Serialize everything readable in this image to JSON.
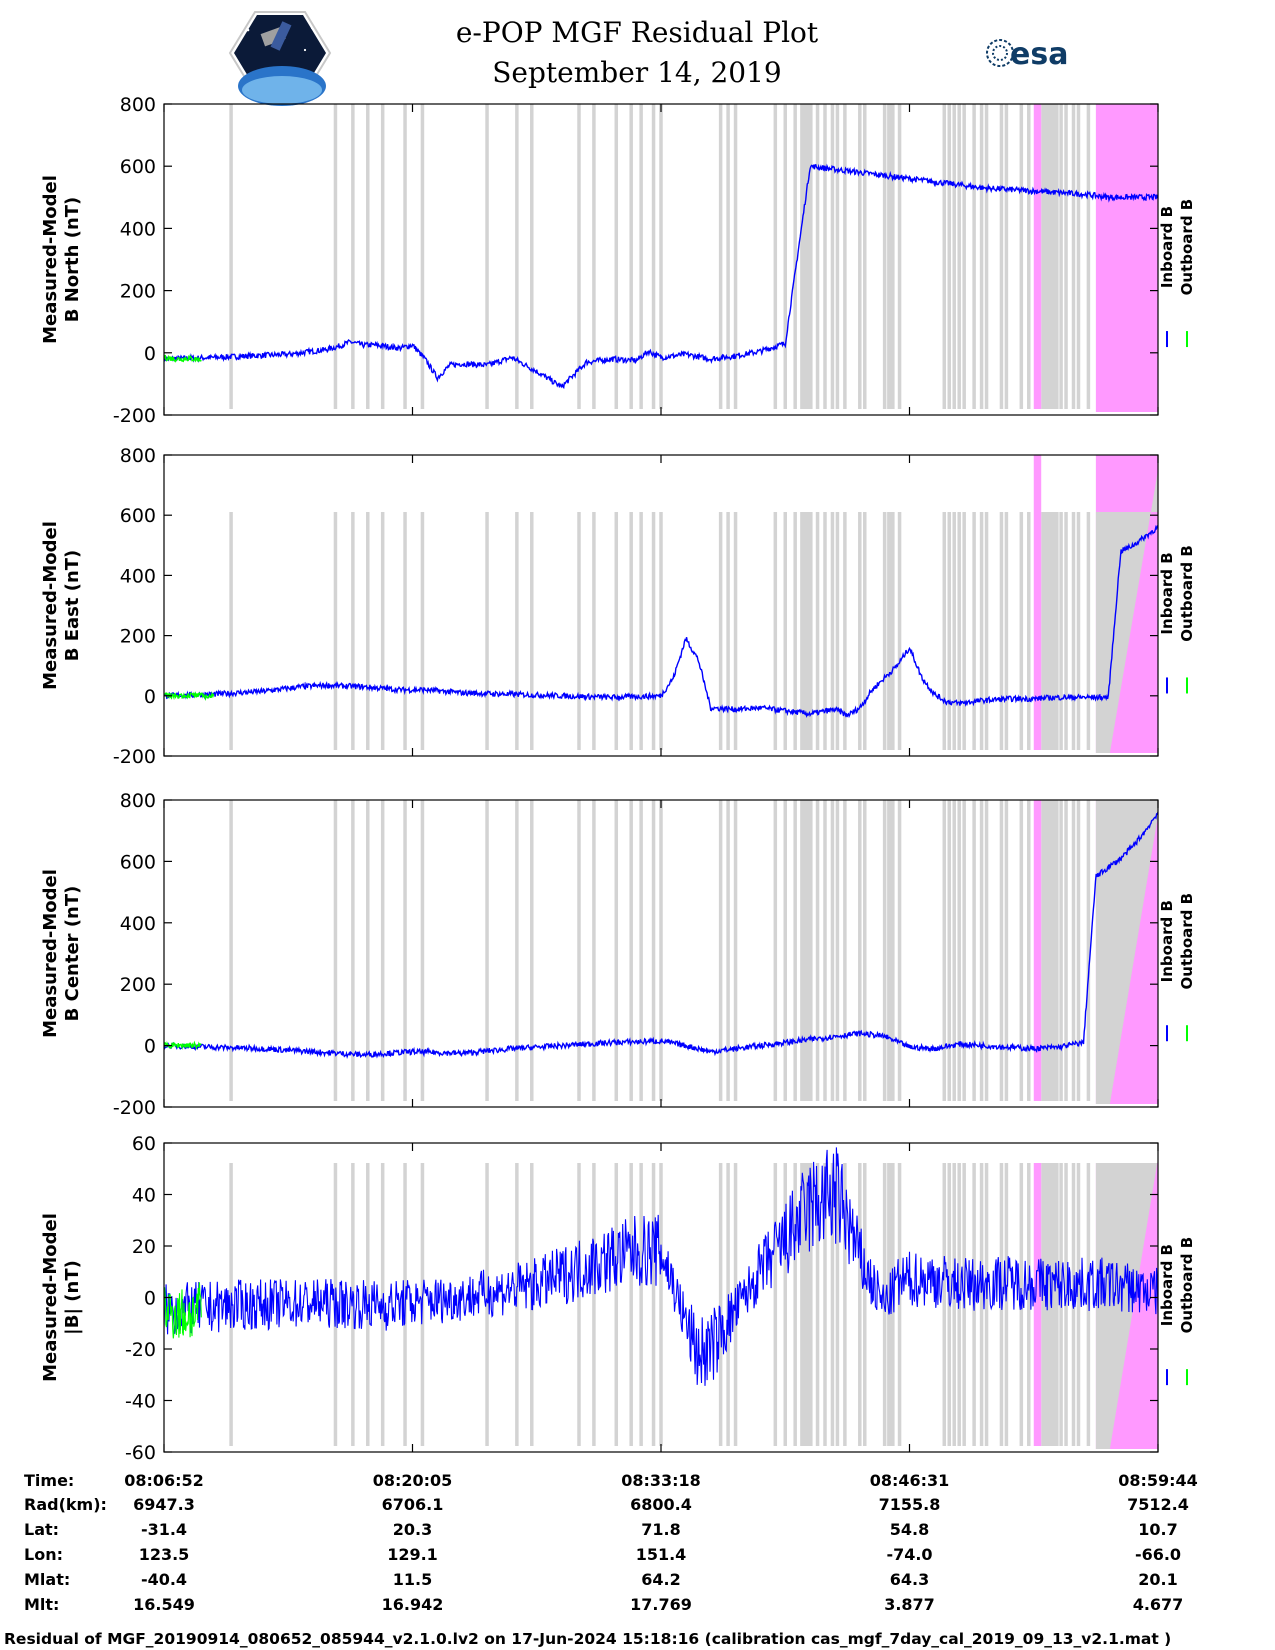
{
  "header": {
    "title_line1": "e-POP MGF Residual Plot",
    "title_line2": "September 14, 2019",
    "left_logo": "cassiope-mission-logo",
    "right_logo_text": "esa",
    "colors": {
      "esa_brand": "#0f3c66"
    }
  },
  "chart_data": [
    {
      "type": "line",
      "ylabel_line1": "Measured-Model",
      "ylabel_line2": "B North (nT)",
      "ylim": [
        -200,
        800
      ],
      "yticks": [
        "800",
        "600",
        "400",
        "200",
        "0",
        "-200"
      ],
      "legend": [
        "Inboard B",
        "Outboard B"
      ],
      "legend_position": "right",
      "series": [
        {
          "name": "Inboard B",
          "color": "#0000ff",
          "x": [
            0,
            0.2,
            0.35,
            0.5,
            0.6,
            0.65,
            0.7,
            0.75,
            0.8,
            0.85,
            0.9,
            0.95,
            1.0,
            1.05,
            1.1,
            1.15,
            1.2,
            1.3,
            1.4,
            1.5,
            1.6,
            1.7,
            1.8,
            1.9,
            1.95,
            2.0,
            2.05,
            2.1,
            2.2,
            2.3,
            2.4,
            2.5,
            2.6,
            2.7,
            2.8,
            2.9,
            3.0,
            3.1,
            3.2,
            3.3,
            3.4,
            3.5,
            3.6,
            3.7,
            3.75,
            3.8,
            3.85,
            3.9,
            3.95,
            4.0
          ],
          "y": [
            -20,
            -15,
            -10,
            -5,
            5,
            10,
            20,
            35,
            25,
            25,
            20,
            15,
            25,
            -20,
            -80,
            -40,
            -35,
            -40,
            -15,
            -60,
            -110,
            -30,
            -20,
            -25,
            5,
            -15,
            -10,
            -5,
            -20,
            -10,
            5,
            30,
            600,
            590,
            580,
            570,
            560,
            550,
            540,
            530,
            525,
            520,
            515,
            510,
            505,
            500,
            500,
            500,
            500,
            500
          ]
        },
        {
          "name": "Outboard B",
          "color": "#00ff00",
          "x": [
            0,
            0.05,
            0.1,
            0.15
          ],
          "y": [
            -15,
            -20,
            -18,
            -22
          ]
        }
      ]
    },
    {
      "type": "line",
      "ylabel_line1": "Measured-Model",
      "ylabel_line2": "B East (nT)",
      "ylim": [
        -200,
        800
      ],
      "yticks": [
        "800",
        "600",
        "400",
        "200",
        "0",
        "-200"
      ],
      "legend": [
        "Inboard B",
        "Outboard B"
      ],
      "legend_position": "right",
      "series": [
        {
          "name": "Inboard B",
          "color": "#0000ff",
          "x": [
            0,
            0.2,
            0.4,
            0.55,
            0.65,
            0.8,
            0.95,
            1.05,
            1.2,
            1.4,
            1.6,
            1.8,
            2.0,
            2.05,
            2.1,
            2.15,
            2.2,
            2.3,
            2.4,
            2.5,
            2.6,
            2.7,
            2.75,
            2.8,
            2.85,
            2.9,
            2.95,
            3.0,
            3.05,
            3.1,
            3.15,
            3.2,
            3.3,
            3.4,
            3.5,
            3.6,
            3.7,
            3.8,
            3.85,
            3.9,
            3.95,
            4.0
          ],
          "y": [
            0,
            5,
            15,
            30,
            35,
            30,
            20,
            20,
            10,
            5,
            0,
            -5,
            0,
            60,
            190,
            120,
            -40,
            -45,
            -40,
            -50,
            -60,
            -45,
            -65,
            -40,
            20,
            60,
            100,
            160,
            60,
            5,
            -20,
            -25,
            -15,
            -10,
            -10,
            -5,
            -5,
            -5,
            480,
            500,
            530,
            560
          ]
        },
        {
          "name": "Outboard B",
          "color": "#00ff00",
          "x": [
            0,
            0.1,
            0.2
          ],
          "y": [
            0,
            2,
            -2
          ]
        }
      ]
    },
    {
      "type": "line",
      "ylabel_line1": "Measured-Model",
      "ylabel_line2": "B Center (nT)",
      "ylim": [
        -200,
        800
      ],
      "yticks": [
        "800",
        "600",
        "400",
        "200",
        "0",
        "-200"
      ],
      "legend": [
        "Inboard B",
        "Outboard B"
      ],
      "legend_position": "right",
      "series": [
        {
          "name": "Inboard B",
          "color": "#0000ff",
          "x": [
            0,
            0.2,
            0.4,
            0.6,
            0.8,
            1.0,
            1.2,
            1.4,
            1.6,
            1.8,
            2.0,
            2.1,
            2.2,
            2.4,
            2.6,
            2.7,
            2.8,
            2.9,
            3.0,
            3.1,
            3.2,
            3.3,
            3.4,
            3.5,
            3.6,
            3.7,
            3.75,
            3.8,
            3.85,
            3.9,
            3.95,
            4.0
          ],
          "y": [
            0,
            -5,
            -10,
            -20,
            -30,
            -20,
            -25,
            -10,
            0,
            10,
            15,
            0,
            -20,
            0,
            20,
            30,
            40,
            30,
            -5,
            -10,
            5,
            0,
            -5,
            -10,
            -5,
            10,
            550,
            580,
            610,
            650,
            700,
            760
          ]
        },
        {
          "name": "Outboard B",
          "color": "#00ff00",
          "x": [
            0,
            0.1,
            0.15
          ],
          "y": [
            0,
            2,
            -1
          ]
        }
      ]
    },
    {
      "type": "line",
      "ylabel_line1": "Measured-Model",
      "ylabel_line2": "|B| (nT)",
      "ylim": [
        -60,
        60
      ],
      "yticks": [
        "60",
        "40",
        "20",
        "0",
        "-20",
        "-40",
        "-60"
      ],
      "legend": [
        "Inboard B",
        "Outboard B"
      ],
      "legend_position": "right",
      "series": [
        {
          "name": "Inboard B",
          "color": "#0000ff",
          "x": [
            0,
            0.3,
            0.6,
            0.9,
            1.2,
            1.5,
            1.7,
            1.9,
            2.0,
            2.05,
            2.1,
            2.15,
            2.2,
            2.3,
            2.4,
            2.5,
            2.6,
            2.7,
            2.75,
            2.8,
            2.85,
            2.9,
            2.95,
            3.0,
            3.1,
            3.2,
            3.4,
            3.6,
            3.8,
            4.0
          ],
          "y": [
            -5,
            -3,
            -2,
            -3,
            0,
            5,
            12,
            18,
            18,
            5,
            -10,
            -22,
            -20,
            -5,
            10,
            22,
            35,
            40,
            30,
            15,
            5,
            -3,
            5,
            7,
            7,
            5,
            6,
            5,
            5,
            2
          ]
        },
        {
          "name": "Outboard B",
          "color": "#00ff00",
          "x": [
            0,
            0.1,
            0.15
          ],
          "y": [
            -5,
            -7,
            -4
          ]
        }
      ],
      "envelope_amplitude_nT": 6
    }
  ],
  "x_axis": {
    "range": [
      0,
      4
    ],
    "tick_positions": [
      0,
      1,
      2,
      3,
      4
    ],
    "data_gap_positions": [
      0.27,
      0.69,
      0.76,
      0.82,
      0.88,
      0.97,
      1.04,
      1.3,
      1.42,
      1.48,
      1.67,
      1.73,
      1.82,
      1.88,
      1.92,
      1.97,
      2.0,
      2.24,
      2.27,
      2.3,
      2.46,
      2.5,
      2.54,
      2.57,
      2.6,
      2.63,
      2.66,
      2.69,
      2.71,
      2.74,
      2.8,
      2.82,
      2.9,
      2.96,
      3.14,
      3.16,
      3.18,
      3.2,
      3.22,
      3.26,
      3.29,
      3.31,
      3.37,
      3.39,
      3.45,
      3.48,
      3.51,
      3.55,
      3.59,
      3.61,
      3.63,
      3.66,
      3.68,
      3.72
    ],
    "gap_shading_color": "#d3d3d3",
    "flag_color": "#ff99ff"
  },
  "table": {
    "row_labels": [
      "Time:",
      "Rad(km):",
      "Lat:",
      "Lon:",
      "Mlat:",
      "Mlt:"
    ],
    "columns": [
      [
        "08:06:52",
        "6947.3",
        "-31.4",
        "123.5",
        "-40.4",
        "16.549"
      ],
      [
        "08:20:05",
        "6706.1",
        "20.3",
        "129.1",
        "11.5",
        "16.942"
      ],
      [
        "08:33:18",
        "6800.4",
        "71.8",
        "151.4",
        "64.2",
        "17.769"
      ],
      [
        "08:46:31",
        "7155.8",
        "54.8",
        "-74.0",
        "64.3",
        "3.877"
      ],
      [
        "08:59:44",
        "7512.4",
        "10.7",
        "-66.0",
        "20.1",
        "4.677"
      ]
    ]
  },
  "footer": "Residual of MGF_20190914_080652_085944_v2.1.0.lv2 on 17-Jun-2024 15:18:16 (calibration cas_mgf_7day_cal_2019_09_13_v2.1.mat )"
}
